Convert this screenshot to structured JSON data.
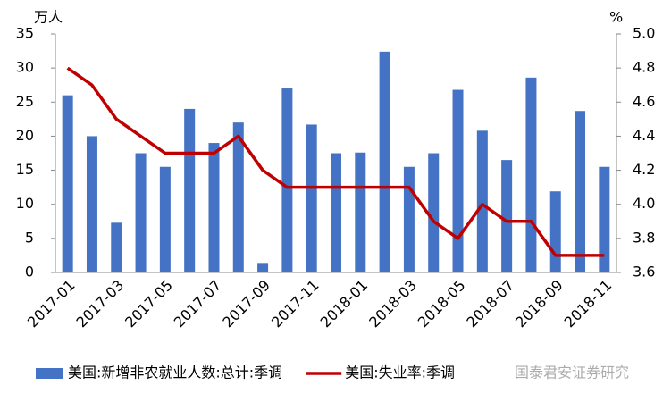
{
  "chart_data": {
    "type": "bar_line",
    "y_label": "万人",
    "y2_label": "%",
    "categories": [
      "2017-01",
      null,
      "2017-03",
      null,
      "2017-05",
      null,
      "2017-07",
      null,
      "2017-09",
      null,
      "2017-11",
      null,
      "2018-01",
      null,
      "2018-03",
      null,
      "2018-05",
      null,
      "2018-07",
      null,
      "2018-09",
      null,
      "2018-11"
    ],
    "series": [
      {
        "name": "美国:新增非农就业人数:总计:季调",
        "color": "#4472c4",
        "type": "bar",
        "values": [
          26,
          20,
          7.3,
          17.5,
          15.5,
          24,
          19,
          22,
          1.4,
          27,
          21.7,
          17.5,
          17.6,
          32.4,
          15.5,
          17.5,
          26.8,
          20.8,
          16.5,
          28.6,
          11.9,
          23.7,
          15.5
        ]
      },
      {
        "name": "美国:失业率:季调",
        "color": "#c00000",
        "type": "line",
        "axis": "y2",
        "values": [
          4.8,
          4.7,
          4.5,
          4.4,
          4.3,
          4.3,
          4.3,
          4.4,
          4.2,
          4.1,
          4.1,
          4.1,
          4.1,
          4.1,
          4.1,
          3.9,
          3.8,
          4.0,
          3.9,
          3.9,
          3.7,
          3.7,
          3.7
        ]
      }
    ],
    "ylim": [
      0,
      35
    ],
    "yticks": [
      0,
      5,
      10,
      15,
      20,
      25,
      30,
      35
    ],
    "y2lim": [
      3.6,
      5.0
    ],
    "y2ticks": [
      3.6,
      3.8,
      {
        "value": 4,
        "label": "4.0"
      },
      4.2,
      4.4,
      4.6,
      4.8,
      {
        "value": 5,
        "label": "5.0"
      }
    ],
    "watermark": "国泰君安证券研究"
  }
}
